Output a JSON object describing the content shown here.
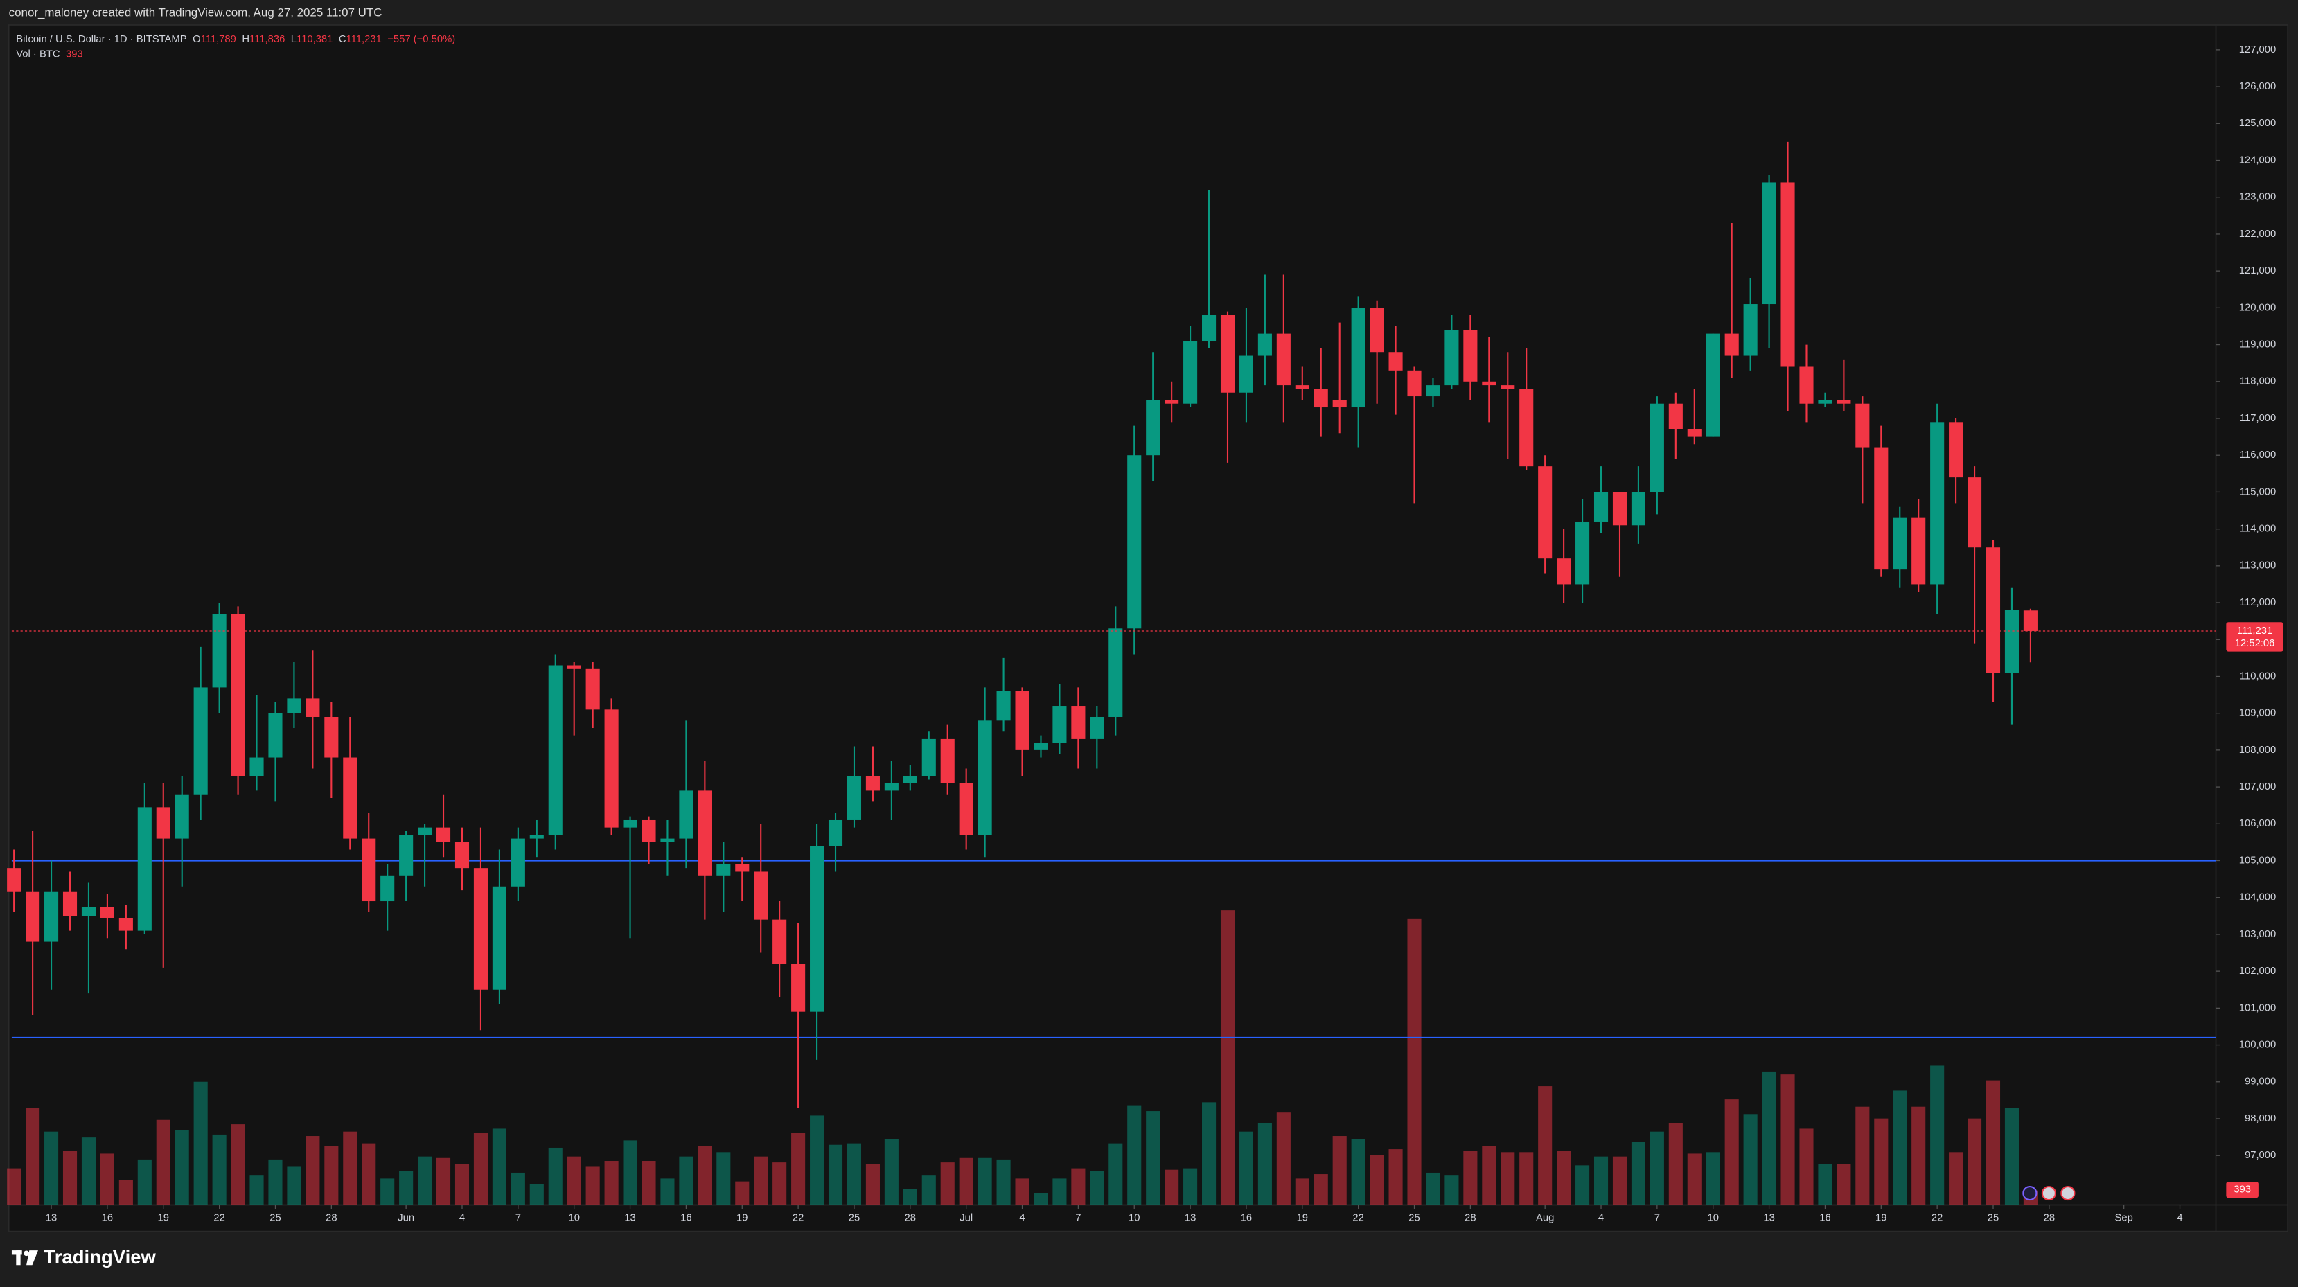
{
  "header": {
    "attribution": "conor_maloney created with TradingView.com, Aug 27, 2025 11:07 UTC"
  },
  "chart_data": {
    "type": "candlestick",
    "title": "Bitcoin / U.S. Dollar · 1D · BITSTAMP",
    "legend": {
      "o_label": "O",
      "open": "111,789",
      "h_label": "H",
      "high": "111,836",
      "l_label": "L",
      "low": "110,381",
      "c_label": "C",
      "close": "111,231",
      "change": "−557 (−0.50%)",
      "volume_label": "Vol · BTC",
      "volume": "393"
    },
    "up_color": "#089981",
    "down_color": "#f23645",
    "open": [
      104800,
      104150,
      102800,
      104150,
      103500,
      103750,
      103450,
      103100,
      106450,
      105600,
      106800,
      109700,
      111700,
      107300,
      107800,
      109000,
      109400,
      108900,
      107800,
      105600,
      103900,
      104600,
      105700,
      105900,
      105500,
      104800,
      101500,
      104300,
      105600,
      105700,
      110300,
      110200,
      109100,
      105900,
      106100,
      105500,
      105600,
      106900,
      104600,
      104900,
      104700,
      103400,
      102200,
      100900,
      105400,
      106100,
      107300,
      106900,
      107100,
      107300,
      108300,
      107100,
      105700,
      108800,
      109600,
      108000,
      108200,
      109200,
      108300,
      108900,
      111300,
      116000,
      117500,
      117400,
      119100,
      119800,
      117700,
      118700,
      119300,
      117900,
      117800,
      117500,
      117300,
      120000,
      118800,
      118300,
      117600,
      117900,
      119400,
      118000,
      117900,
      117800,
      115700,
      113200,
      112500,
      114200,
      115000,
      114100,
      115000,
      117400,
      116700,
      116500,
      119300,
      118700,
      120100,
      123400,
      118400,
      117400,
      117500,
      117400,
      116200,
      112900,
      114300,
      112500,
      116900,
      115400,
      113500,
      110100,
      111789
    ],
    "high": [
      105300,
      105800,
      105000,
      104700,
      104400,
      104100,
      103800,
      107100,
      107100,
      107300,
      110800,
      112000,
      111900,
      109500,
      109300,
      110400,
      110700,
      109300,
      108900,
      106300,
      104900,
      105800,
      106000,
      106800,
      105900,
      105900,
      105300,
      105900,
      106100,
      110600,
      110400,
      110400,
      109400,
      106200,
      106200,
      106100,
      108800,
      107700,
      105500,
      105100,
      106000,
      103900,
      103300,
      106000,
      106300,
      108100,
      108100,
      107700,
      107600,
      108500,
      108700,
      107500,
      109700,
      110500,
      109700,
      108400,
      109800,
      109700,
      109200,
      111900,
      116800,
      118800,
      118000,
      119500,
      123200,
      119900,
      120000,
      120900,
      120900,
      118400,
      118900,
      119600,
      120300,
      120200,
      119500,
      118400,
      118100,
      119800,
      119800,
      119200,
      118800,
      118900,
      116000,
      114000,
      114800,
      115700,
      115000,
      115700,
      117600,
      117700,
      117800,
      119300,
      122300,
      120800,
      123600,
      124500,
      119000,
      117700,
      118600,
      117600,
      116800,
      114600,
      114800,
      117400,
      117000,
      115700,
      113700,
      112400,
      111836
    ],
    "low": [
      103600,
      100800,
      101500,
      103100,
      101400,
      102900,
      102600,
      103000,
      102100,
      104300,
      106100,
      109000,
      106800,
      106900,
      106600,
      108600,
      107500,
      106700,
      105300,
      103600,
      103100,
      103900,
      104300,
      105100,
      104200,
      100400,
      101100,
      103900,
      105100,
      105300,
      108400,
      108600,
      105700,
      102900,
      104900,
      104600,
      104800,
      103400,
      103600,
      103900,
      102500,
      101300,
      98300,
      99600,
      104700,
      105900,
      106600,
      106100,
      106900,
      107200,
      106800,
      105300,
      105100,
      108500,
      107300,
      107800,
      107900,
      107500,
      107500,
      108400,
      110600,
      115300,
      116900,
      117300,
      118900,
      115800,
      116900,
      117900,
      116900,
      117500,
      116500,
      116600,
      116200,
      117400,
      117100,
      114700,
      117300,
      117800,
      117500,
      116900,
      115900,
      115600,
      112800,
      112000,
      112000,
      113900,
      112700,
      113600,
      114400,
      115900,
      116300,
      116500,
      118100,
      118300,
      118900,
      117200,
      116900,
      117300,
      117200,
      114700,
      112700,
      112400,
      112300,
      111700,
      114700,
      110900,
      109300,
      108700,
      110381
    ],
    "close": [
      104150,
      102800,
      104150,
      103500,
      103750,
      103450,
      103100,
      106450,
      105600,
      106800,
      109700,
      111700,
      107300,
      107800,
      109000,
      109400,
      108900,
      107800,
      105600,
      103900,
      104600,
      105700,
      105900,
      105500,
      104800,
      101500,
      104300,
      105600,
      105700,
      110300,
      110200,
      109100,
      105900,
      106100,
      105500,
      105600,
      106900,
      104600,
      104900,
      104700,
      103400,
      102200,
      100900,
      105400,
      106100,
      107300,
      106900,
      107100,
      107300,
      108300,
      107100,
      105700,
      108800,
      109600,
      108000,
      108200,
      109200,
      108300,
      108900,
      111300,
      116000,
      117500,
      117400,
      119100,
      119800,
      117700,
      118700,
      119300,
      117900,
      117800,
      117300,
      117300,
      120000,
      118800,
      118300,
      117600,
      117900,
      119400,
      118000,
      117900,
      117800,
      115700,
      113200,
      112500,
      114200,
      115000,
      114100,
      115000,
      117400,
      116700,
      116500,
      119300,
      118700,
      120100,
      123400,
      118400,
      117400,
      117500,
      117400,
      116200,
      112900,
      114300,
      112500,
      116900,
      115400,
      113500,
      110100,
      111800,
      111231
    ],
    "volume": [
      1000,
      2640,
      2000,
      1480,
      1840,
      1400,
      680,
      1240,
      2320,
      2040,
      3360,
      1920,
      2200,
      800,
      1240,
      1040,
      1880,
      1600,
      2000,
      1680,
      720,
      920,
      1320,
      1280,
      1120,
      1960,
      2080,
      880,
      560,
      1560,
      1320,
      1040,
      1200,
      1760,
      1200,
      720,
      1320,
      1600,
      1440,
      640,
      1320,
      1160,
      1960,
      2440,
      1640,
      1680,
      1120,
      1800,
      440,
      800,
      1160,
      1280,
      1280,
      1240,
      720,
      320,
      720,
      1000,
      920,
      1680,
      2720,
      2560,
      960,
      1000,
      2800,
      8040,
      2000,
      2240,
      2520,
      720,
      840,
      1880,
      1800,
      1360,
      1520,
      7800,
      880,
      800,
      1480,
      1600,
      1440,
      1440,
      3240,
      1480,
      1080,
      1320,
      1320,
      1720,
      2000,
      2240,
      1400,
      1440,
      2880,
      2480,
      3640,
      3560,
      2080,
      1120,
      1120,
      2680,
      2360,
      3120,
      2680,
      3800,
      1440,
      2360,
      3400,
      2640,
      393
    ],
    "xlim": [
      -0.12,
      117.93
    ],
    "xticks": [
      {
        "value": 2,
        "label": "13"
      },
      {
        "value": 5,
        "label": "16"
      },
      {
        "value": 8,
        "label": "19"
      },
      {
        "value": 11,
        "label": "22"
      },
      {
        "value": 14,
        "label": "25"
      },
      {
        "value": 17,
        "label": "28"
      },
      {
        "value": 21,
        "label": "Jun"
      },
      {
        "value": 24,
        "label": "4"
      },
      {
        "value": 27,
        "label": "7"
      },
      {
        "value": 30,
        "label": "10"
      },
      {
        "value": 33,
        "label": "13"
      },
      {
        "value": 36,
        "label": "16"
      },
      {
        "value": 39,
        "label": "19"
      },
      {
        "value": 42,
        "label": "22"
      },
      {
        "value": 45,
        "label": "25"
      },
      {
        "value": 48,
        "label": "28"
      },
      {
        "value": 51,
        "label": "Jul"
      },
      {
        "value": 54,
        "label": "4"
      },
      {
        "value": 57,
        "label": "7"
      },
      {
        "value": 60,
        "label": "10"
      },
      {
        "value": 63,
        "label": "13"
      },
      {
        "value": 66,
        "label": "16"
      },
      {
        "value": 69,
        "label": "19"
      },
      {
        "value": 72,
        "label": "22"
      },
      {
        "value": 75,
        "label": "25"
      },
      {
        "value": 78,
        "label": "28"
      },
      {
        "value": 82,
        "label": "Aug"
      },
      {
        "value": 85,
        "label": "4"
      },
      {
        "value": 88,
        "label": "7"
      },
      {
        "value": 91,
        "label": "10"
      },
      {
        "value": 94,
        "label": "13"
      },
      {
        "value": 97,
        "label": "16"
      },
      {
        "value": 100,
        "label": "19"
      },
      {
        "value": 103,
        "label": "22"
      },
      {
        "value": 106,
        "label": "25"
      },
      {
        "value": 109,
        "label": "28"
      },
      {
        "value": 113,
        "label": "Sep"
      },
      {
        "value": 116,
        "label": "4"
      }
    ],
    "ylim": [
      95660,
      127675
    ],
    "yticks": [
      {
        "value": 97000,
        "label": "97,000"
      },
      {
        "value": 98000,
        "label": "98,000"
      },
      {
        "value": 99000,
        "label": "99,000"
      },
      {
        "value": 100000,
        "label": "100,000"
      },
      {
        "value": 101000,
        "label": "101,000"
      },
      {
        "value": 102000,
        "label": "102,000"
      },
      {
        "value": 103000,
        "label": "103,000"
      },
      {
        "value": 104000,
        "label": "104,000"
      },
      {
        "value": 105000,
        "label": "105,000"
      },
      {
        "value": 106000,
        "label": "106,000"
      },
      {
        "value": 107000,
        "label": "107,000"
      },
      {
        "value": 108000,
        "label": "108,000"
      },
      {
        "value": 109000,
        "label": "109,000"
      },
      {
        "value": 110000,
        "label": "110,000"
      },
      {
        "value": 111000,
        "label": "111,000"
      },
      {
        "value": 112000,
        "label": "112,000"
      },
      {
        "value": 113000,
        "label": "113,000"
      },
      {
        "value": 114000,
        "label": "114,000"
      },
      {
        "value": 115000,
        "label": "115,000"
      },
      {
        "value": 116000,
        "label": "116,000"
      },
      {
        "value": 117000,
        "label": "117,000"
      },
      {
        "value": 118000,
        "label": "118,000"
      },
      {
        "value": 119000,
        "label": "119,000"
      },
      {
        "value": 120000,
        "label": "120,000"
      },
      {
        "value": 121000,
        "label": "121,000"
      },
      {
        "value": 122000,
        "label": "122,000"
      },
      {
        "value": 123000,
        "label": "123,000"
      },
      {
        "value": 124000,
        "label": "124,000"
      },
      {
        "value": 125000,
        "label": "125,000"
      },
      {
        "value": 126000,
        "label": "126,000"
      },
      {
        "value": 127000,
        "label": "127,000"
      }
    ],
    "price_lines": [
      {
        "value": 105000,
        "color": "#2962ff"
      },
      {
        "value": 100200,
        "color": "#2962ff"
      }
    ],
    "last_price": {
      "value": 111231,
      "label": "111,231",
      "countdown": "12:52:06"
    }
  },
  "footer": {
    "brand": "TradingView"
  }
}
